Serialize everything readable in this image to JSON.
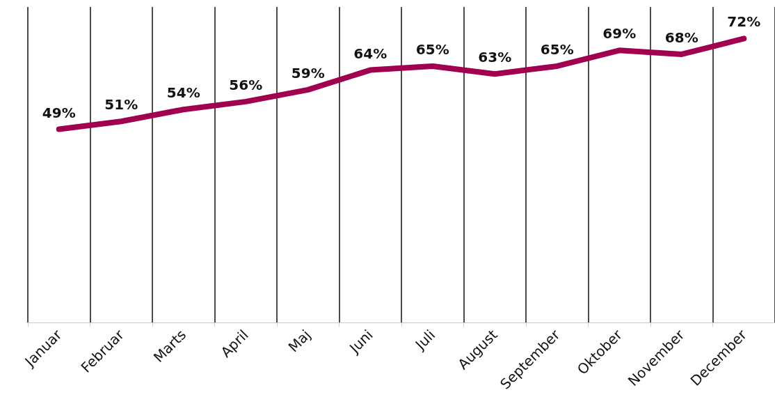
{
  "chart_data": {
    "type": "line",
    "categories": [
      "Januar",
      "Februar",
      "Marts",
      "April",
      "Maj",
      "Juni",
      "Juli",
      "August",
      "September",
      "Oktober",
      "November",
      "December"
    ],
    "series": [
      {
        "color": "#a0004f",
        "values": [
          49,
          51,
          54,
          56,
          59,
          64,
          65,
          63,
          65,
          69,
          68,
          72
        ],
        "value_labels": [
          "49%",
          "51%",
          "54%",
          "56%",
          "59%",
          "64%",
          "65%",
          "63%",
          "65%",
          "69%",
          "68%",
          "72%"
        ]
      }
    ],
    "grid": "x",
    "marker": "none",
    "line_style": "solid",
    "tick_labels": "x"
  }
}
